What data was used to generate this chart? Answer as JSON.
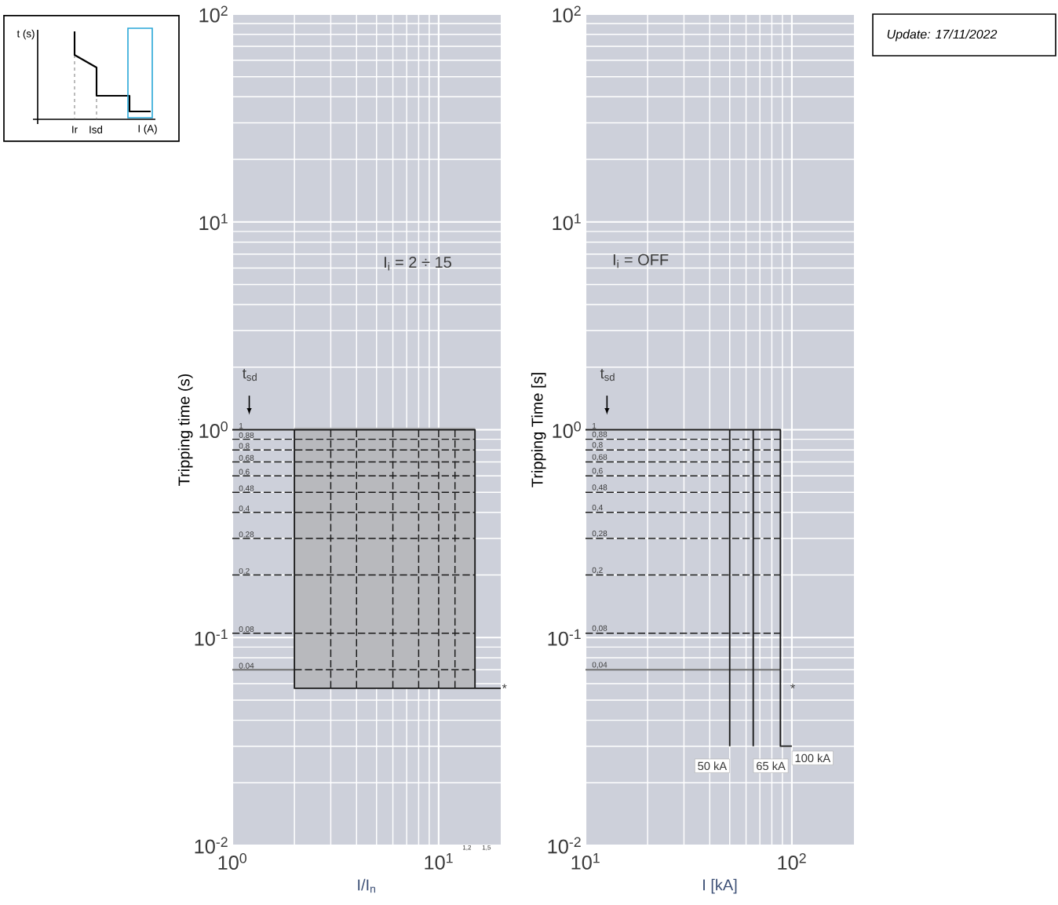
{
  "chart_data": [
    {
      "type": "other",
      "annotations": [
        "t (s)",
        "Ir",
        "Isd",
        "I (A)"
      ]
    },
    {
      "type": "line",
      "xlabel": "I/I$_{n}$",
      "ylabel": "Tripping time (s)",
      "log": "xy",
      "grid": true,
      "xlim": [
        1,
        20
      ],
      "ylim": [
        0.01,
        100
      ],
      "xticks": [
        {
          "value": 1,
          "label": "10$^{0}$"
        },
        {
          "value": 10,
          "label": "10$^{1}$"
        }
      ],
      "yticks": [
        {
          "value": 0.01,
          "label": "10$^{-2}$"
        },
        {
          "value": 0.1,
          "label": "10$^{-1}$"
        },
        {
          "value": 1,
          "label": "10$^{0}$"
        },
        {
          "value": 10,
          "label": "10$^{1}$"
        },
        {
          "value": 100,
          "label": "10$^{2}$"
        }
      ],
      "annotations": [
        "I$_{i}$ = 2 ÷ 15",
        "t$_{sd}$",
        {
          "text": "*",
          "x": 20,
          "y": 0.057
        },
        "1,2",
        "1,5"
      ],
      "series": [
        {
          "type": "line",
          "x": [
            2,
            15
          ],
          "values": [
            1,
            1
          ],
          "lower": [
            0.057,
            0.057
          ],
          "upper": [
            1,
            1
          ],
          "color": "#b8b9bd"
        },
        {
          "type": "line",
          "name": "0.88",
          "x": [
            1,
            15
          ],
          "values": [
            0.9,
            0.9
          ],
          "color": "#1a1a1a",
          "line_style": "dashed"
        },
        {
          "type": "line",
          "name": "0.8",
          "x": [
            1,
            15
          ],
          "values": [
            0.8,
            0.8
          ],
          "color": "#1a1a1a",
          "line_style": "dashed"
        },
        {
          "type": "line",
          "name": "0.68",
          "x": [
            1,
            15
          ],
          "values": [
            0.7,
            0.7
          ],
          "color": "#1a1a1a",
          "line_style": "dashed"
        },
        {
          "type": "line",
          "name": "0.6",
          "x": [
            1,
            15
          ],
          "values": [
            0.6,
            0.6
          ],
          "color": "#1a1a1a",
          "line_style": "dashed"
        },
        {
          "type": "line",
          "name": "0.48",
          "x": [
            1,
            15
          ],
          "values": [
            0.5,
            0.5
          ],
          "color": "#1a1a1a",
          "line_style": "dashed"
        },
        {
          "type": "line",
          "name": "0.4",
          "x": [
            1,
            15
          ],
          "values": [
            0.4,
            0.4
          ],
          "color": "#1a1a1a",
          "line_style": "dashed"
        },
        {
          "type": "line",
          "name": "0.28",
          "x": [
            1,
            15
          ],
          "values": [
            0.3,
            0.3
          ],
          "color": "#1a1a1a",
          "line_style": "dashed"
        },
        {
          "type": "line",
          "name": "0.2",
          "x": [
            1,
            15
          ],
          "values": [
            0.2,
            0.2
          ],
          "color": "#1a1a1a",
          "line_style": "dashed"
        },
        {
          "type": "line",
          "name": "0.08",
          "x": [
            1,
            15
          ],
          "values": [
            0.105,
            0.105
          ],
          "color": "#1a1a1a",
          "line_style": "dashed"
        },
        {
          "type": "line",
          "name": "0.04",
          "x": [
            1,
            2
          ],
          "values": [
            0.07,
            0.07
          ],
          "color": "#6e6e6e",
          "line_style": "solid"
        },
        {
          "type": "line",
          "x": [
            2,
            15
          ],
          "values": [
            0.07,
            0.07
          ],
          "color": "#1a1a1a",
          "line_style": "dashed"
        },
        {
          "type": "line",
          "x": [
            3,
            3
          ],
          "values": [
            0.057,
            1
          ],
          "color": "#1a1a1a",
          "line_style": "dashed"
        },
        {
          "type": "line",
          "x": [
            4,
            4
          ],
          "values": [
            0.057,
            1
          ],
          "color": "#1a1a1a",
          "line_style": "dashed"
        },
        {
          "type": "line",
          "x": [
            6,
            6
          ],
          "values": [
            0.057,
            1
          ],
          "color": "#1a1a1a",
          "line_style": "dashed"
        },
        {
          "type": "line",
          "x": [
            8,
            8
          ],
          "values": [
            0.057,
            1
          ],
          "color": "#1a1a1a",
          "line_style": "dashed"
        },
        {
          "type": "line",
          "x": [
            10,
            10
          ],
          "values": [
            0.057,
            1
          ],
          "color": "#1a1a1a",
          "line_style": "dashed"
        },
        {
          "type": "line",
          "x": [
            12,
            12
          ],
          "values": [
            0.057,
            1
          ],
          "color": "#1a1a1a",
          "line_style": "dashed"
        },
        {
          "type": "line",
          "name": "1",
          "x": [
            1,
            15,
            15
          ],
          "values": [
            1,
            1,
            0.057
          ],
          "color": "#1a1a1a",
          "line_style": "solid"
        },
        {
          "type": "line",
          "x": [
            2,
            2,
            20
          ],
          "values": [
            1,
            0.057,
            0.057
          ],
          "color": "#1a1a1a",
          "line_style": "solid"
        }
      ]
    },
    {
      "type": "line",
      "xlabel": "I [kA]",
      "ylabel": "Tripping Time [s]",
      "log": "xy",
      "grid": true,
      "xlim": [
        10,
        200
      ],
      "ylim": [
        0.01,
        100
      ],
      "xticks": [
        {
          "value": 10,
          "label": "10$^{1}$"
        },
        {
          "value": 100,
          "label": "10$^{2}$"
        }
      ],
      "yticks": [
        {
          "value": 0.01,
          "label": "10$^{-2}$"
        },
        {
          "value": 0.1,
          "label": "10$^{-1}$"
        },
        {
          "value": 1,
          "label": "10$^{0}$"
        },
        {
          "value": 10,
          "label": "10$^{1}$"
        },
        {
          "value": 100,
          "label": "10$^{2}$"
        }
      ],
      "annotations": [
        "I$_{i}$ = OFF",
        "t$_{sd}$",
        {
          "text": "50 kA",
          "x": 50,
          "y": 0.03
        },
        {
          "text": "65 kA",
          "x": 65,
          "y": 0.03
        },
        {
          "text": "100 kA",
          "x": 100,
          "y": 0.03
        },
        "*"
      ],
      "series": [
        {
          "type": "line",
          "name": "0,88",
          "x": [
            10,
            88
          ],
          "values": [
            0.9,
            0.9
          ],
          "color": "#1a1a1a",
          "line_style": "dashed"
        },
        {
          "type": "line",
          "name": "0,8",
          "x": [
            10,
            88
          ],
          "values": [
            0.8,
            0.8
          ],
          "color": "#1a1a1a",
          "line_style": "dashed"
        },
        {
          "type": "line",
          "name": "0,68",
          "x": [
            10,
            88
          ],
          "values": [
            0.7,
            0.7
          ],
          "color": "#1a1a1a",
          "line_style": "dashed"
        },
        {
          "type": "line",
          "name": "0,6",
          "x": [
            10,
            88
          ],
          "values": [
            0.6,
            0.6
          ],
          "color": "#1a1a1a",
          "line_style": "dashed"
        },
        {
          "type": "line",
          "name": "0,48",
          "x": [
            10,
            88
          ],
          "values": [
            0.5,
            0.5
          ],
          "color": "#1a1a1a",
          "line_style": "dashed"
        },
        {
          "type": "line",
          "name": "0,4",
          "x": [
            10,
            88
          ],
          "values": [
            0.4,
            0.4
          ],
          "color": "#1a1a1a",
          "line_style": "dashed"
        },
        {
          "type": "line",
          "name": "0,28",
          "x": [
            10,
            88
          ],
          "values": [
            0.3,
            0.3
          ],
          "color": "#1a1a1a",
          "line_style": "dashed"
        },
        {
          "type": "line",
          "name": "0,2",
          "x": [
            10,
            88
          ],
          "values": [
            0.2,
            0.2
          ],
          "color": "#1a1a1a",
          "line_style": "dashed"
        },
        {
          "type": "line",
          "name": "0,08",
          "x": [
            10,
            88
          ],
          "values": [
            0.105,
            0.105
          ],
          "color": "#1a1a1a",
          "line_style": "dashed"
        },
        {
          "type": "line",
          "name": "0,04",
          "x": [
            10,
            88
          ],
          "values": [
            0.07,
            0.07
          ],
          "color": "#6e6e6e",
          "line_style": "solid"
        },
        {
          "type": "line",
          "x": [
            50,
            50
          ],
          "values": [
            1,
            0.03
          ],
          "color": "#1a1a1a",
          "line_style": "solid"
        },
        {
          "type": "line",
          "x": [
            65,
            65
          ],
          "values": [
            1,
            0.03
          ],
          "color": "#1a1a1a",
          "line_style": "solid"
        },
        {
          "type": "line",
          "name": "1",
          "x": [
            10,
            88,
            88,
            100
          ],
          "values": [
            1,
            1,
            0.03,
            0.03
          ],
          "color": "#1a1a1a",
          "line_style": "solid"
        }
      ]
    },
    {
      "type": "other",
      "annotations": [
        "Update: 17/11/2022"
      ]
    }
  ]
}
